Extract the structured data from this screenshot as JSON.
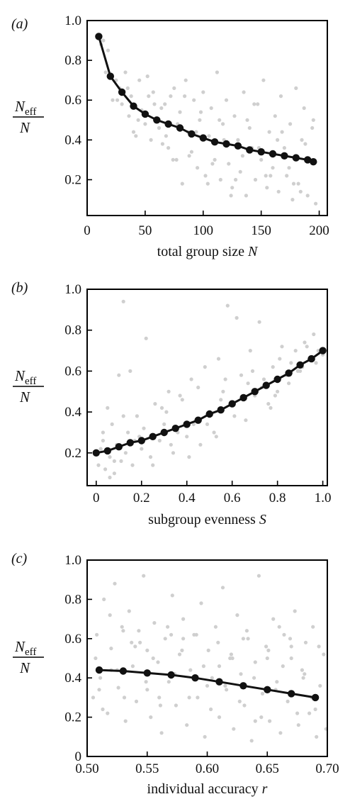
{
  "panels": [
    {
      "label": "(a)",
      "xlabel_text": "total group size ",
      "xlabel_var": "N",
      "ylabel_top": "N",
      "ylabel_sub": "eff",
      "ylabel_bottom": "N"
    },
    {
      "label": "(b)",
      "xlabel_text": "subgroup evenness ",
      "xlabel_var": "S",
      "ylabel_top": "N",
      "ylabel_sub": "eff",
      "ylabel_bottom": "N"
    },
    {
      "label": "(c)",
      "xlabel_text": "individual accuracy ",
      "xlabel_var": "r",
      "ylabel_top": "N",
      "ylabel_sub": "eff",
      "ylabel_bottom": "N"
    }
  ],
  "chart_data": [
    {
      "type": "scatter",
      "panel": "(a)",
      "xlim": [
        0,
        207
      ],
      "ylim": [
        0.02,
        1.0
      ],
      "xticks": [
        0,
        50,
        100,
        150,
        200
      ],
      "xtick_labels": [
        "0",
        "50",
        "100",
        "150",
        "200"
      ],
      "yticks": [
        0.2,
        0.4,
        0.6,
        0.8,
        1.0
      ],
      "ytick_labels": [
        "0.2",
        "0.4",
        "0.6",
        "0.8",
        "1.0"
      ],
      "grid": false,
      "series": [
        {
          "kind": "line",
          "color": "#111111",
          "x": [
            10,
            20,
            30,
            40,
            50,
            60,
            70,
            80,
            90,
            100,
            110,
            120,
            130,
            140,
            150,
            160,
            170,
            180,
            190,
            195
          ],
          "y": [
            0.92,
            0.72,
            0.64,
            0.57,
            0.53,
            0.5,
            0.48,
            0.46,
            0.43,
            0.41,
            0.39,
            0.38,
            0.37,
            0.35,
            0.34,
            0.33,
            0.32,
            0.31,
            0.3,
            0.29
          ]
        },
        {
          "kind": "scatter",
          "color": "#cfcfcf",
          "x": [
            12,
            14,
            18,
            22,
            25,
            28,
            30,
            33,
            36,
            38,
            40,
            42,
            45,
            47,
            50,
            52,
            55,
            57,
            60,
            62,
            65,
            67,
            70,
            72,
            75,
            77,
            80,
            82,
            85,
            87,
            90,
            92,
            95,
            97,
            100,
            102,
            105,
            107,
            110,
            112,
            115,
            117,
            120,
            122,
            125,
            127,
            130,
            132,
            135,
            137,
            140,
            142,
            145,
            147,
            150,
            152,
            155,
            157,
            160,
            162,
            165,
            167,
            170,
            172,
            175,
            177,
            180,
            182,
            185,
            187,
            190,
            192,
            195,
            197,
            16,
            26,
            35,
            44,
            53,
            64,
            74,
            84,
            94,
            104,
            114,
            124,
            134,
            144,
            154,
            164,
            174,
            184,
            194,
            58,
            68,
            78,
            88,
            98,
            108,
            118,
            128,
            138,
            148,
            158,
            168,
            178,
            188
          ],
          "y": [
            0.88,
            0.9,
            0.85,
            0.6,
            0.7,
            0.66,
            0.58,
            0.74,
            0.52,
            0.62,
            0.44,
            0.42,
            0.7,
            0.55,
            0.48,
            0.72,
            0.4,
            0.64,
            0.5,
            0.46,
            0.38,
            0.58,
            0.36,
            0.62,
            0.66,
            0.3,
            0.54,
            0.18,
            0.7,
            0.44,
            0.34,
            0.6,
            0.26,
            0.5,
            0.64,
            0.22,
            0.42,
            0.56,
            0.3,
            0.74,
            0.2,
            0.48,
            0.6,
            0.28,
            0.16,
            0.52,
            0.4,
            0.24,
            0.64,
            0.12,
            0.46,
            0.36,
            0.2,
            0.58,
            0.3,
            0.7,
            0.16,
            0.44,
            0.26,
            0.52,
            0.14,
            0.62,
            0.36,
            0.22,
            0.48,
            0.1,
            0.66,
            0.18,
            0.4,
            0.56,
            0.12,
            0.3,
            0.5,
            0.08,
            0.74,
            0.6,
            0.66,
            0.5,
            0.62,
            0.56,
            0.3,
            0.62,
            0.44,
            0.18,
            0.5,
            0.12,
            0.32,
            0.58,
            0.22,
            0.4,
            0.26,
            0.14,
            0.46,
            0.58,
            0.42,
            0.48,
            0.32,
            0.54,
            0.28,
            0.4,
            0.2,
            0.5,
            0.36,
            0.22,
            0.44,
            0.18,
            0.38
          ]
        }
      ]
    },
    {
      "type": "scatter",
      "panel": "(b)",
      "xlim": [
        -0.04,
        1.02
      ],
      "ylim": [
        0.04,
        1.0
      ],
      "xticks": [
        0,
        0.2,
        0.4,
        0.6,
        0.8,
        1.0
      ],
      "xtick_labels": [
        "0",
        "0.2",
        "0.4",
        "0.6",
        "0.8",
        "1.0"
      ],
      "yticks": [
        0.2,
        0.4,
        0.6,
        0.8,
        1.0
      ],
      "ytick_labels": [
        "0.2",
        "0.4",
        "0.6",
        "0.8",
        "1.0"
      ],
      "grid": false,
      "series": [
        {
          "kind": "line",
          "color": "#111111",
          "x": [
            0.0,
            0.05,
            0.1,
            0.15,
            0.2,
            0.25,
            0.3,
            0.35,
            0.4,
            0.45,
            0.5,
            0.55,
            0.6,
            0.65,
            0.7,
            0.75,
            0.8,
            0.85,
            0.9,
            0.95,
            1.0
          ],
          "y": [
            0.2,
            0.21,
            0.23,
            0.25,
            0.26,
            0.28,
            0.3,
            0.32,
            0.34,
            0.36,
            0.39,
            0.41,
            0.44,
            0.47,
            0.5,
            0.53,
            0.56,
            0.59,
            0.63,
            0.66,
            0.7
          ]
        },
        {
          "kind": "scatter",
          "color": "#cfcfcf",
          "x": [
            0.01,
            0.02,
            0.03,
            0.04,
            0.05,
            0.06,
            0.07,
            0.08,
            0.09,
            0.1,
            0.11,
            0.12,
            0.13,
            0.14,
            0.15,
            0.16,
            0.18,
            0.2,
            0.22,
            0.24,
            0.26,
            0.28,
            0.3,
            0.32,
            0.34,
            0.36,
            0.38,
            0.4,
            0.42,
            0.44,
            0.46,
            0.48,
            0.5,
            0.52,
            0.54,
            0.56,
            0.58,
            0.6,
            0.62,
            0.64,
            0.66,
            0.68,
            0.7,
            0.72,
            0.74,
            0.76,
            0.78,
            0.8,
            0.82,
            0.84,
            0.86,
            0.88,
            0.9,
            0.92,
            0.94,
            0.96,
            0.98,
            1.0,
            0.03,
            0.08,
            0.12,
            0.17,
            0.21,
            0.25,
            0.29,
            0.33,
            0.37,
            0.41,
            0.45,
            0.49,
            0.53,
            0.57,
            0.61,
            0.65,
            0.69,
            0.73,
            0.77,
            0.81,
            0.85,
            0.89,
            0.93,
            0.97,
            0.06,
            0.19,
            0.31,
            0.43,
            0.55,
            0.67,
            0.79,
            0.91
          ],
          "y": [
            0.14,
            0.22,
            0.3,
            0.12,
            0.42,
            0.18,
            0.34,
            0.1,
            0.24,
            0.58,
            0.16,
            0.94,
            0.2,
            0.3,
            0.6,
            0.14,
            0.38,
            0.22,
            0.76,
            0.18,
            0.44,
            0.26,
            0.34,
            0.5,
            0.2,
            0.3,
            0.46,
            0.28,
            0.56,
            0.36,
            0.24,
            0.62,
            0.4,
            0.3,
            0.66,
            0.5,
            0.92,
            0.44,
            0.86,
            0.58,
            0.36,
            0.7,
            0.48,
            0.84,
            0.56,
            0.44,
            0.62,
            0.5,
            0.72,
            0.58,
            0.64,
            0.7,
            0.6,
            0.74,
            0.66,
            0.78,
            0.7,
            0.68,
            0.26,
            0.16,
            0.38,
            0.26,
            0.32,
            0.14,
            0.42,
            0.24,
            0.48,
            0.18,
            0.52,
            0.34,
            0.28,
            0.56,
            0.38,
            0.46,
            0.6,
            0.52,
            0.42,
            0.66,
            0.54,
            0.6,
            0.72,
            0.64,
            0.08,
            0.28,
            0.4,
            0.34,
            0.46,
            0.54,
            0.48,
            0.62
          ]
        }
      ]
    },
    {
      "type": "scatter",
      "panel": "(c)",
      "xlim": [
        0.5,
        0.7
      ],
      "ylim": [
        0,
        1.0
      ],
      "xticks": [
        0.5,
        0.55,
        0.6,
        0.65,
        0.7
      ],
      "xtick_labels": [
        "0.50",
        "0.55",
        "0.60",
        "0.65",
        "0.70"
      ],
      "yticks": [
        0,
        0.2,
        0.4,
        0.6,
        0.8,
        1.0
      ],
      "ytick_labels": [
        "0",
        "0.2",
        "0.4",
        "0.6",
        "0.8",
        "1.0"
      ],
      "grid": false,
      "series": [
        {
          "kind": "line",
          "color": "#111111",
          "x": [
            0.51,
            0.53,
            0.55,
            0.57,
            0.59,
            0.61,
            0.63,
            0.65,
            0.67,
            0.69
          ],
          "y": [
            0.44,
            0.435,
            0.425,
            0.415,
            0.4,
            0.38,
            0.36,
            0.34,
            0.32,
            0.3
          ]
        },
        {
          "kind": "scatter",
          "color": "#cfcfcf",
          "x": [
            0.505,
            0.508,
            0.511,
            0.514,
            0.517,
            0.52,
            0.523,
            0.526,
            0.529,
            0.532,
            0.535,
            0.538,
            0.541,
            0.544,
            0.547,
            0.55,
            0.553,
            0.556,
            0.559,
            0.562,
            0.565,
            0.568,
            0.571,
            0.574,
            0.577,
            0.58,
            0.583,
            0.586,
            0.589,
            0.592,
            0.595,
            0.598,
            0.601,
            0.604,
            0.607,
            0.61,
            0.613,
            0.616,
            0.619,
            0.622,
            0.625,
            0.628,
            0.631,
            0.634,
            0.637,
            0.64,
            0.643,
            0.646,
            0.649,
            0.652,
            0.655,
            0.658,
            0.661,
            0.664,
            0.667,
            0.67,
            0.673,
            0.676,
            0.679,
            0.682,
            0.685,
            0.688,
            0.691,
            0.694,
            0.697,
            0.507,
            0.513,
            0.519,
            0.525,
            0.531,
            0.537,
            0.543,
            0.549,
            0.555,
            0.561,
            0.567,
            0.573,
            0.579,
            0.585,
            0.591,
            0.597,
            0.603,
            0.609,
            0.615,
            0.621,
            0.627,
            0.633,
            0.639,
            0.645,
            0.651,
            0.657,
            0.663,
            0.669,
            0.675,
            0.681,
            0.687,
            0.693,
            0.699,
            0.51,
            0.53,
            0.55,
            0.57,
            0.59,
            0.61,
            0.63,
            0.65,
            0.67,
            0.69,
            0.52,
            0.54,
            0.56,
            0.58,
            0.6,
            0.62,
            0.64,
            0.66,
            0.68
          ],
          "y": [
            0.3,
            0.62,
            0.4,
            0.8,
            0.22,
            0.55,
            0.88,
            0.35,
            0.66,
            0.18,
            0.74,
            0.46,
            0.28,
            0.58,
            0.92,
            0.34,
            0.2,
            0.68,
            0.48,
            0.12,
            0.6,
            0.38,
            0.82,
            0.26,
            0.52,
            0.7,
            0.16,
            0.44,
            0.62,
            0.3,
            0.78,
            0.1,
            0.54,
            0.4,
            0.66,
            0.2,
            0.86,
            0.34,
            0.5,
            0.14,
            0.72,
            0.42,
            0.26,
            0.6,
            0.08,
            0.48,
            0.92,
            0.32,
            0.56,
            0.18,
            0.7,
            0.38,
            0.12,
            0.62,
            0.28,
            0.5,
            0.74,
            0.16,
            0.44,
            0.58,
            0.22,
            0.66,
            0.1,
            0.36,
            0.52,
            0.5,
            0.24,
            0.72,
            0.44,
            0.3,
            0.58,
            0.64,
            0.38,
            0.5,
            0.26,
            0.66,
            0.42,
            0.54,
            0.3,
            0.62,
            0.46,
            0.24,
            0.58,
            0.36,
            0.5,
            0.28,
            0.64,
            0.4,
            0.2,
            0.54,
            0.34,
            0.46,
            0.6,
            0.22,
            0.42,
            0.3,
            0.56,
            0.14,
            0.34,
            0.64,
            0.54,
            0.62,
            0.4,
            0.46,
            0.6,
            0.5,
            0.56,
            0.24,
            0.44,
            0.56,
            0.3,
            0.6,
            0.36,
            0.52,
            0.18,
            0.66,
            0.4
          ]
        }
      ]
    }
  ]
}
